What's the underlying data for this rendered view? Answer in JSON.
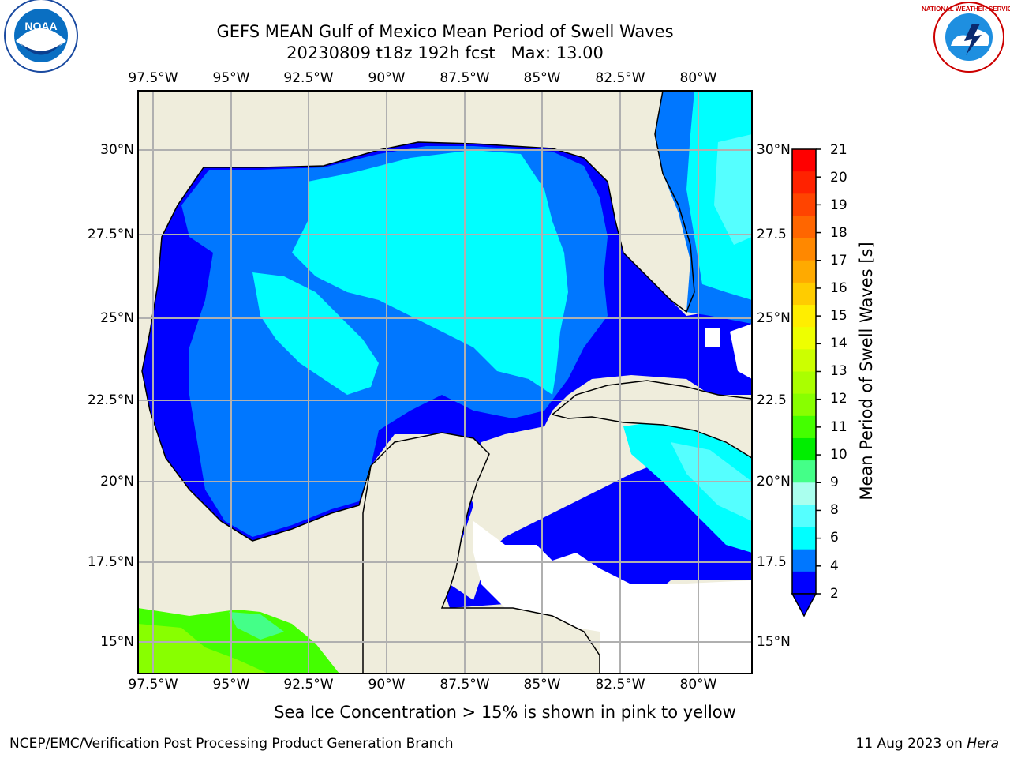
{
  "title": {
    "line1": "GEFS MEAN Gulf of Mexico Mean Period of Swell Waves",
    "line2": "20230809 t18z 192h fcst   Max: 13.00"
  },
  "axes": {
    "lon_ticks": [
      "97.5°W",
      "95°W",
      "92.5°W",
      "90°W",
      "87.5°W",
      "85°W",
      "82.5°W",
      "80°W"
    ],
    "lat_ticks_left": [
      "30°N",
      "27.5°N",
      "25°N",
      "22.5°N",
      "20°N",
      "17.5°N",
      "15°N"
    ],
    "lat_ticks_right": [
      "30°N",
      "27.5",
      "25°N",
      "22.5",
      "20°N",
      "17.5",
      "15°N"
    ]
  },
  "colorbar": {
    "label": "Mean Period of Swell Waves [s]",
    "ticks": [
      "21",
      "20",
      "19",
      "18",
      "17",
      "16",
      "15",
      "14",
      "13",
      "12",
      "11",
      "10",
      "9",
      "8",
      "6",
      "4",
      "2"
    ],
    "colors": [
      "#ff0000",
      "#ff2200",
      "#ff4400",
      "#ff6600",
      "#ff8800",
      "#ffaa00",
      "#ffcc00",
      "#ffee00",
      "#eeff00",
      "#ccff00",
      "#aaff00",
      "#88ff00",
      "#44ff00",
      "#00ee00",
      "#44ff88",
      "#aaffee",
      "#55ffff",
      "#00ffff",
      "#0077ff",
      "#0000ff"
    ]
  },
  "map_colors": {
    "land": "#efeddc",
    "no_data": "#ffffff",
    "period_2_4": "#0000ff",
    "period_4_6": "#0077ff",
    "period_6_8": "#00ffff",
    "period_8_9": "#55ffff",
    "period_9_10": "#aaffee",
    "pacific_green": "#44ff00",
    "pacific_lime": "#88ff00",
    "grid": "#b0b0b0"
  },
  "logos": {
    "noaa_text": "NOAA",
    "nws_text": "NATIONAL WEATHER SERVICE"
  },
  "ice_note": "Sea Ice Concentration > 15% is shown in pink to yellow",
  "footer": {
    "left": "NCEP/EMC/Verification Post Processing Product Generation Branch",
    "date": "11 Aug 2023 on",
    "host": "Hera"
  }
}
